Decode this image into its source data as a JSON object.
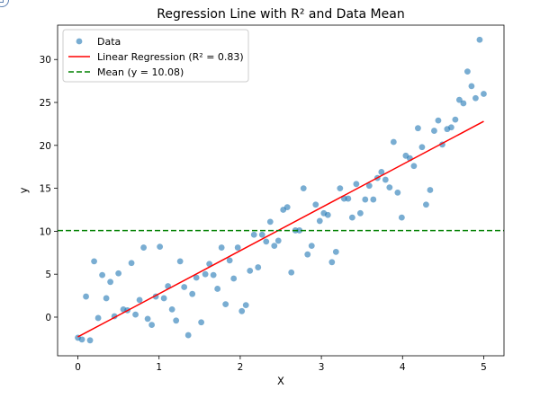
{
  "chart_data": {
    "type": "scatter",
    "title": "Regression Line with R² and Data Mean",
    "xlabel": "X",
    "ylabel": "y",
    "xlim": [
      -0.25,
      5.25
    ],
    "ylim": [
      -4.5,
      34.0
    ],
    "xticks": [
      0,
      1,
      2,
      3,
      4,
      5
    ],
    "yticks": [
      0,
      5,
      10,
      15,
      20,
      25,
      30
    ],
    "grid": false,
    "legend_position": "upper-left",
    "series": [
      {
        "name": "Data",
        "kind": "scatter",
        "color": "#1f77b4",
        "points": [
          [
            0.0,
            -2.4
          ],
          [
            0.05,
            -2.6
          ],
          [
            0.1,
            2.4
          ],
          [
            0.15,
            -2.7
          ],
          [
            0.2,
            6.5
          ],
          [
            0.25,
            -0.1
          ],
          [
            0.3,
            4.9
          ],
          [
            0.35,
            2.2
          ],
          [
            0.4,
            4.1
          ],
          [
            0.45,
            0.1
          ],
          [
            0.5,
            5.1
          ],
          [
            0.56,
            0.9
          ],
          [
            0.61,
            0.8
          ],
          [
            0.66,
            6.3
          ],
          [
            0.71,
            0.3
          ],
          [
            0.76,
            2.0
          ],
          [
            0.81,
            8.1
          ],
          [
            0.86,
            -0.2
          ],
          [
            0.91,
            -0.9
          ],
          [
            0.96,
            2.4
          ],
          [
            1.01,
            8.2
          ],
          [
            1.06,
            2.2
          ],
          [
            1.11,
            3.6
          ],
          [
            1.16,
            0.9
          ],
          [
            1.21,
            -0.4
          ],
          [
            1.26,
            6.5
          ],
          [
            1.31,
            3.5
          ],
          [
            1.36,
            -2.1
          ],
          [
            1.41,
            2.7
          ],
          [
            1.46,
            4.6
          ],
          [
            1.52,
            -0.6
          ],
          [
            1.57,
            5.0
          ],
          [
            1.62,
            6.2
          ],
          [
            1.67,
            4.9
          ],
          [
            1.72,
            3.3
          ],
          [
            1.77,
            8.1
          ],
          [
            1.82,
            1.5
          ],
          [
            1.87,
            6.6
          ],
          [
            1.92,
            4.5
          ],
          [
            1.97,
            8.1
          ],
          [
            2.02,
            0.7
          ],
          [
            2.07,
            1.4
          ],
          [
            2.12,
            5.4
          ],
          [
            2.17,
            9.6
          ],
          [
            2.22,
            5.8
          ],
          [
            2.27,
            9.6
          ],
          [
            2.32,
            8.8
          ],
          [
            2.37,
            11.1
          ],
          [
            2.42,
            8.3
          ],
          [
            2.47,
            8.9
          ],
          [
            2.53,
            12.5
          ],
          [
            2.58,
            12.8
          ],
          [
            2.63,
            5.2
          ],
          [
            2.68,
            10.1
          ],
          [
            2.73,
            10.1
          ],
          [
            2.78,
            15.0
          ],
          [
            2.83,
            7.3
          ],
          [
            2.88,
            8.3
          ],
          [
            2.93,
            13.1
          ],
          [
            2.98,
            11.2
          ],
          [
            3.03,
            12.1
          ],
          [
            3.08,
            11.9
          ],
          [
            3.13,
            6.4
          ],
          [
            3.18,
            7.6
          ],
          [
            3.23,
            15.0
          ],
          [
            3.28,
            13.8
          ],
          [
            3.33,
            13.8
          ],
          [
            3.38,
            11.6
          ],
          [
            3.43,
            15.5
          ],
          [
            3.48,
            12.1
          ],
          [
            3.54,
            13.7
          ],
          [
            3.59,
            15.3
          ],
          [
            3.64,
            13.7
          ],
          [
            3.69,
            16.2
          ],
          [
            3.74,
            16.9
          ],
          [
            3.79,
            16.0
          ],
          [
            3.84,
            15.1
          ],
          [
            3.89,
            20.4
          ],
          [
            3.94,
            14.5
          ],
          [
            3.99,
            11.6
          ],
          [
            4.04,
            18.8
          ],
          [
            4.09,
            18.5
          ],
          [
            4.14,
            17.6
          ],
          [
            4.19,
            22.0
          ],
          [
            4.24,
            19.8
          ],
          [
            4.29,
            13.1
          ],
          [
            4.34,
            14.8
          ],
          [
            4.39,
            21.7
          ],
          [
            4.44,
            22.9
          ],
          [
            4.49,
            20.1
          ],
          [
            4.55,
            21.9
          ],
          [
            4.6,
            22.1
          ],
          [
            4.65,
            23.0
          ],
          [
            4.7,
            25.3
          ],
          [
            4.75,
            24.9
          ],
          [
            4.8,
            28.6
          ],
          [
            4.85,
            26.9
          ],
          [
            4.9,
            25.5
          ],
          [
            4.95,
            32.3
          ],
          [
            5.0,
            26.0
          ]
        ]
      },
      {
        "name": "Linear Regression (R² = 0.83)",
        "kind": "line",
        "color": "#ff0000",
        "dash": "solid",
        "points": [
          [
            0.0,
            -2.3
          ],
          [
            5.0,
            22.8
          ]
        ]
      },
      {
        "name": "Mean (y = 10.08)",
        "kind": "hline",
        "color": "#008000",
        "dash": "dashed",
        "y": 10.08
      }
    ]
  }
}
